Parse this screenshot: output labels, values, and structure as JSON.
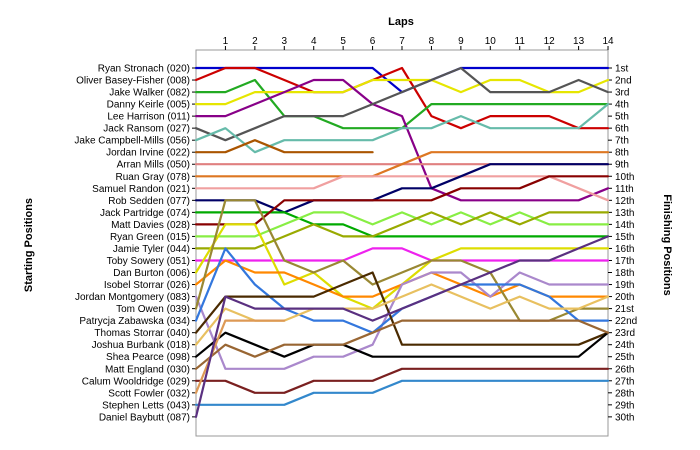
{
  "chart_data": {
    "type": "line",
    "title": "Laps",
    "ylabel_left": "Starting Positions",
    "ylabel_right": "Finishing Positions",
    "x": [
      1,
      2,
      3,
      4,
      5,
      6,
      7,
      8,
      9,
      10,
      11,
      12,
      13,
      14
    ],
    "starting_grid": [
      "Ryan Stronach (020)",
      "Oliver Basey-Fisher (008)",
      "Jake Walker (082)",
      "Danny Keirle (005)",
      "Lee Harrison (011)",
      "Jack Ransom (027)",
      "Jake Campbell-Mills (056)",
      "Jordan Irvine (022)",
      "Arran Mills (050)",
      "Ruan Gray (078)",
      "Samuel Randon (021)",
      "Rob Sedden (077)",
      "Jack Partridge (074)",
      "Matt Davies (028)",
      "Ryan Green (015)",
      "Jamie Tyler (044)",
      "Toby Sowery (051)",
      "Dan Burton (006)",
      "Isobel Storrar (026)",
      "Jordan Montgomery (083)",
      "Tom Owen (039)",
      "Patrycja Zabawska (034)",
      "Thomas Storrar (040)",
      "Joshua Burbank (018)",
      "Shea Pearce (098)",
      "Matt England (030)",
      "Calum Wooldridge (029)",
      "Scott Fowler (032)",
      "Stephen Letts (043)",
      "Daniel Baybutt (087)"
    ],
    "finishing_labels": [
      "1st",
      "2nd",
      "3rd",
      "4th",
      "5th",
      "6th",
      "7th",
      "8th",
      "9th",
      "10th",
      "11th",
      "12th",
      "13th",
      "14th",
      "15th",
      "16th",
      "17th",
      "18th",
      "19th",
      "20th",
      "21st",
      "22nd",
      "23rd",
      "24th",
      "25th",
      "26th",
      "27th",
      "28th",
      "29th",
      "30th"
    ],
    "series": [
      {
        "color": "#0000cc",
        "positions": [
          1,
          1,
          1,
          1,
          1,
          1,
          3,
          2,
          1,
          1,
          1,
          1,
          1,
          1
        ]
      },
      {
        "color": "#cc0000",
        "positions": [
          1,
          1,
          2,
          3,
          3,
          2,
          1,
          5,
          6,
          5,
          5,
          5,
          6,
          6
        ]
      },
      {
        "color": "#22aa22",
        "positions": [
          3,
          2,
          5,
          5,
          6,
          6,
          6,
          4,
          4,
          4,
          4,
          4,
          4,
          4
        ]
      },
      {
        "color": "#e6e600",
        "positions": [
          4,
          3,
          3,
          3,
          3,
          2,
          2,
          2,
          3,
          2,
          2,
          3,
          3,
          2
        ]
      },
      {
        "color": "#880088",
        "positions": [
          5,
          4,
          3,
          2,
          2,
          4,
          5,
          11,
          12,
          12,
          12,
          12,
          12,
          11
        ]
      },
      {
        "color": "#555555",
        "positions": [
          7,
          6,
          5,
          5,
          5,
          4,
          3,
          2,
          1,
          3,
          3,
          3,
          2,
          3
        ]
      },
      {
        "color": "#66bbaa",
        "positions": [
          6,
          8,
          7,
          7,
          7,
          7,
          6,
          6,
          5,
          6,
          6,
          6,
          6,
          4
        ]
      },
      {
        "color": "#aa5500",
        "positions": [
          8,
          7,
          8,
          8,
          8,
          8,
          null,
          null,
          null,
          null,
          null,
          null,
          null,
          null
        ]
      },
      {
        "color": "#e08080",
        "positions": [
          9,
          9,
          9,
          9,
          9,
          9,
          9,
          9,
          9,
          9,
          9,
          9,
          9,
          9
        ]
      },
      {
        "color": "#dd7722",
        "positions": [
          10,
          10,
          10,
          10,
          10,
          10,
          9,
          8,
          8,
          8,
          8,
          8,
          8,
          8
        ]
      },
      {
        "color": "#f0a0a0",
        "positions": [
          11,
          11,
          11,
          11,
          10,
          10,
          10,
          10,
          10,
          10,
          10,
          10,
          11,
          12
        ]
      },
      {
        "color": "#000066",
        "positions": [
          12,
          12,
          13,
          12,
          12,
          12,
          11,
          11,
          10,
          9,
          9,
          9,
          9,
          9
        ]
      },
      {
        "color": "#00aa00",
        "positions": [
          13,
          13,
          13,
          14,
          14,
          15,
          15,
          15,
          15,
          15,
          15,
          15,
          15,
          15
        ]
      },
      {
        "color": "#880000",
        "positions": [
          14,
          14,
          12,
          12,
          12,
          12,
          12,
          12,
          11,
          11,
          11,
          10,
          10,
          10
        ]
      },
      {
        "color": "#88ee44",
        "positions": [
          15,
          15,
          14,
          13,
          13,
          14,
          13,
          14,
          13,
          14,
          13,
          14,
          14,
          14
        ]
      },
      {
        "color": "#99aa00",
        "positions": [
          16,
          16,
          15,
          14,
          15,
          15,
          14,
          13,
          14,
          13,
          14,
          13,
          13,
          13
        ]
      },
      {
        "color": "#ee22ee",
        "positions": [
          17,
          17,
          17,
          17,
          17,
          16,
          16,
          17,
          17,
          17,
          17,
          17,
          17,
          17
        ]
      },
      {
        "color": "#dddd00",
        "positions": [
          14,
          14,
          19,
          18,
          20,
          21,
          19,
          17,
          16,
          16,
          16,
          16,
          16,
          16
        ]
      },
      {
        "color": "#ff8800",
        "positions": [
          17,
          18,
          18,
          19,
          20,
          20,
          19,
          18,
          19,
          20,
          19,
          20,
          20,
          20
        ]
      },
      {
        "color": "#aa88cc",
        "positions": [
          26,
          26,
          26,
          25,
          25,
          24,
          19,
          18,
          18,
          20,
          18,
          19,
          19,
          19
        ]
      },
      {
        "color": "#998833",
        "positions": [
          12,
          12,
          17,
          18,
          17,
          19,
          18,
          17,
          17,
          18,
          22,
          22,
          21,
          21
        ]
      },
      {
        "color": "#3377dd",
        "positions": [
          16,
          19,
          21,
          22,
          22,
          23,
          21,
          20,
          19,
          19,
          19,
          20,
          22,
          22
        ]
      },
      {
        "color": "#4a2a00",
        "positions": [
          20,
          20,
          20,
          20,
          19,
          18,
          24,
          24,
          24,
          24,
          24,
          24,
          24,
          23
        ]
      },
      {
        "color": "#e8c060",
        "positions": [
          21,
          22,
          22,
          21,
          21,
          21,
          20,
          19,
          20,
          21,
          20,
          21,
          21,
          20
        ]
      },
      {
        "color": "#000000",
        "positions": [
          23,
          24,
          25,
          24,
          24,
          25,
          25,
          25,
          25,
          25,
          25,
          25,
          25,
          23
        ]
      },
      {
        "color": "#996633",
        "positions": [
          24,
          25,
          24,
          24,
          24,
          23,
          22,
          22,
          22,
          22,
          22,
          22,
          22,
          23
        ]
      },
      {
        "color": "#7a2020",
        "positions": [
          27,
          28,
          28,
          27,
          27,
          27,
          26,
          26,
          26,
          26,
          26,
          26,
          26,
          26
        ]
      },
      {
        "color": "#dd9955",
        "positions": [
          22,
          22,
          22,
          null,
          null,
          null,
          null,
          null,
          null,
          null,
          null,
          null,
          null,
          null
        ]
      },
      {
        "color": "#3388cc",
        "positions": [
          29,
          29,
          29,
          28,
          28,
          28,
          27,
          27,
          27,
          27,
          27,
          27,
          27,
          27
        ]
      },
      {
        "color": "#5a3080",
        "positions": [
          20,
          21,
          21,
          21,
          21,
          22,
          21,
          20,
          19,
          18,
          17,
          17,
          16,
          15
        ]
      }
    ]
  }
}
